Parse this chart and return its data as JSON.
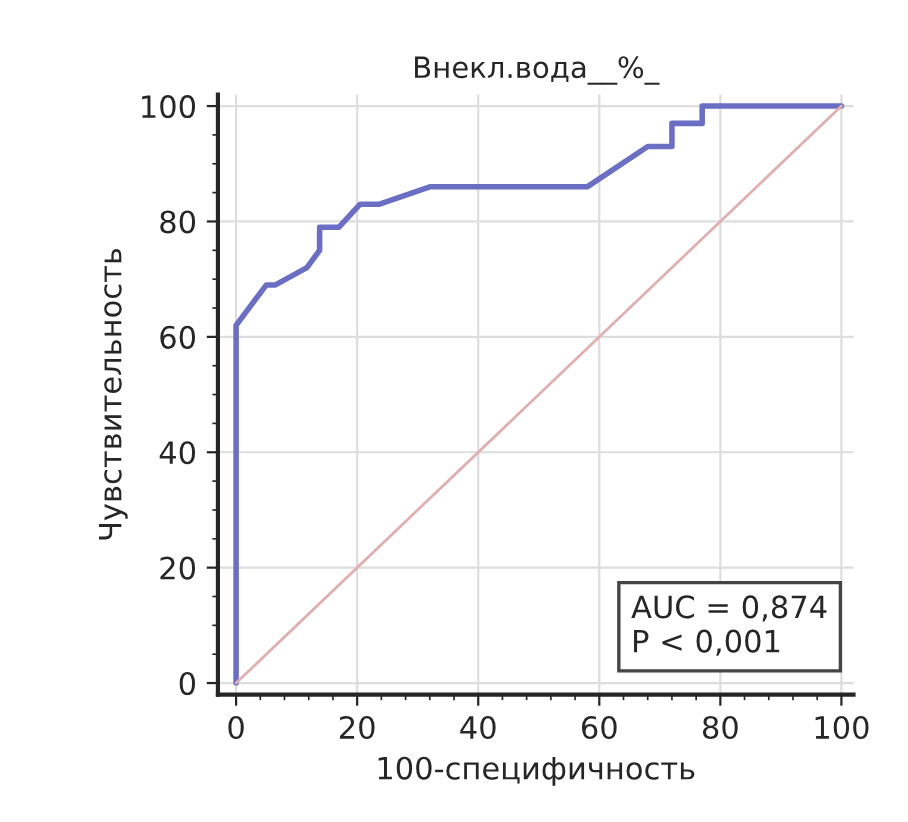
{
  "chart_data": {
    "type": "line",
    "title": "Внекл.вода__%_",
    "xlabel": "100-специфичность",
    "ylabel": "Чувствительность",
    "xlim": [
      -3,
      102
    ],
    "ylim": [
      -2,
      102
    ],
    "xticks": [
      0,
      20,
      40,
      60,
      80,
      100
    ],
    "yticks": [
      0,
      20,
      40,
      60,
      80,
      100
    ],
    "grid": true,
    "legend": false,
    "marker": "none",
    "line_style": "solid",
    "series": [
      {
        "color": "#6b6fc4",
        "x": [
          0,
          0,
          5,
          6.5,
          11.7,
          13.8,
          13.8,
          17,
          20.5,
          23.7,
          32,
          58,
          68,
          72,
          72,
          77,
          77,
          100
        ],
        "values": [
          0,
          62,
          69,
          69,
          72,
          75,
          79,
          79,
          83,
          83,
          86,
          86,
          93,
          93,
          97,
          97,
          100,
          100
        ]
      },
      {
        "type": "line",
        "color": "#e0b0b0",
        "x": [
          0,
          100
        ],
        "values": [
          0,
          100
        ]
      }
    ],
    "annotations": [
      "AUC = 0,874\nP < 0,001"
    ]
  }
}
